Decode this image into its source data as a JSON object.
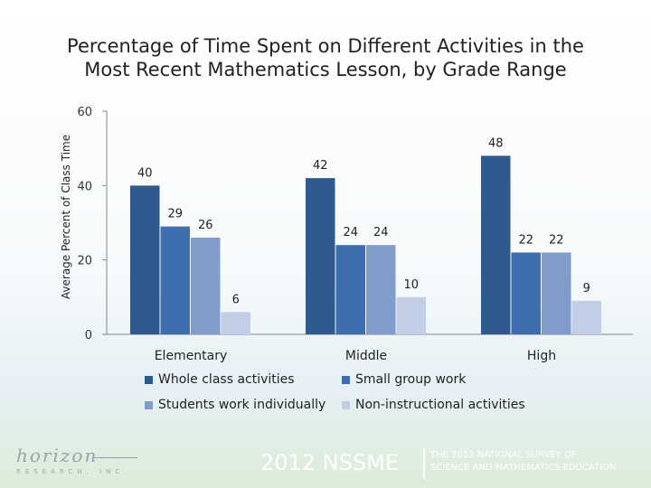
{
  "chart_data": {
    "type": "bar",
    "title": "Percentage of Time Spent on Different Activities in the Most Recent Mathematics Lesson, by Grade Range",
    "title_line1": "Percentage of Time Spent on Different Activities in the",
    "title_line2": "Most Recent Mathematics Lesson, by Grade Range",
    "xlabel": "",
    "ylabel": "Average Percent of Class Time",
    "ylim": [
      0,
      60
    ],
    "yticks": [
      0,
      20,
      40,
      60
    ],
    "grid": false,
    "legend_position": "bottom",
    "categories": [
      "Elementary",
      "Middle",
      "High"
    ],
    "series": [
      {
        "name": "Whole class activities",
        "values": [
          40,
          42,
          48
        ],
        "color": "#2e5a8e"
      },
      {
        "name": "Small group work",
        "values": [
          29,
          24,
          22
        ],
        "color": "#3f6eb0"
      },
      {
        "name": "Students work individually",
        "values": [
          26,
          24,
          22
        ],
        "color": "#7f9ccb"
      },
      {
        "name": "Non-instructional activities",
        "values": [
          6,
          10,
          9
        ],
        "color": "#c2cee6"
      }
    ]
  },
  "footer": {
    "logo_text": "horizon",
    "logo_subtext": "RESEARCH, INC.",
    "conference": "2012 NSSME",
    "tagline_line1": "THE 2012 NATIONAL SURVEY OF",
    "tagline_line2": "SCIENCE AND MATHEMATICS EDUCATION"
  }
}
